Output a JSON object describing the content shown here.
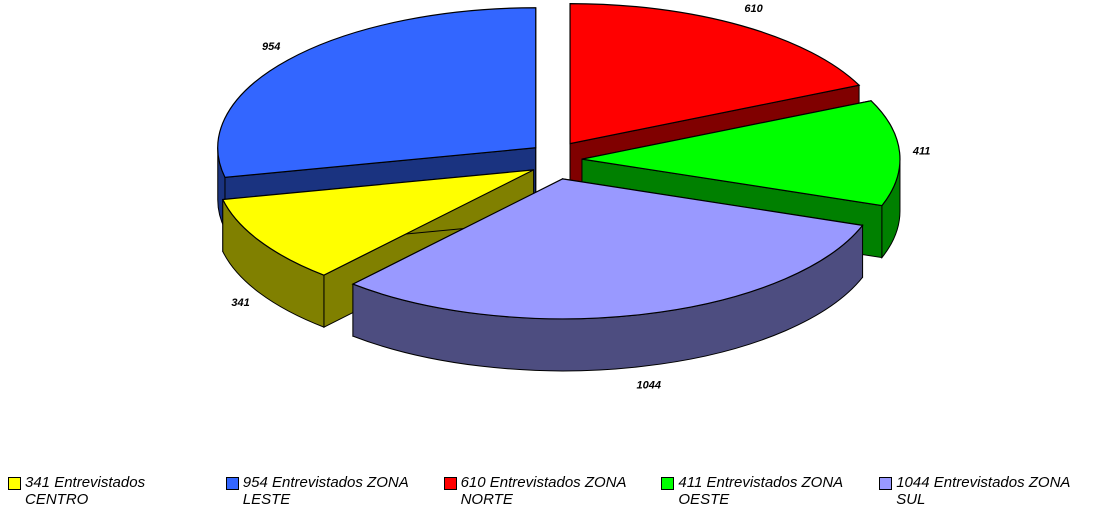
{
  "chart_data": {
    "type": "pie",
    "categories": [
      "341 Entrevistados CENTRO",
      "954 Entrevistados ZONA LESTE",
      "610 Entrevistados ZONA NORTE",
      "411 Entrevistados ZONA OESTE",
      "1044 Entrevistados ZONA SUL"
    ],
    "values": [
      341,
      954,
      610,
      411,
      1044
    ],
    "colors": [
      "#ffff00",
      "#3366ff",
      "#ff0000",
      "#00ff00",
      "#9999ff"
    ],
    "legend": "bottom"
  }
}
